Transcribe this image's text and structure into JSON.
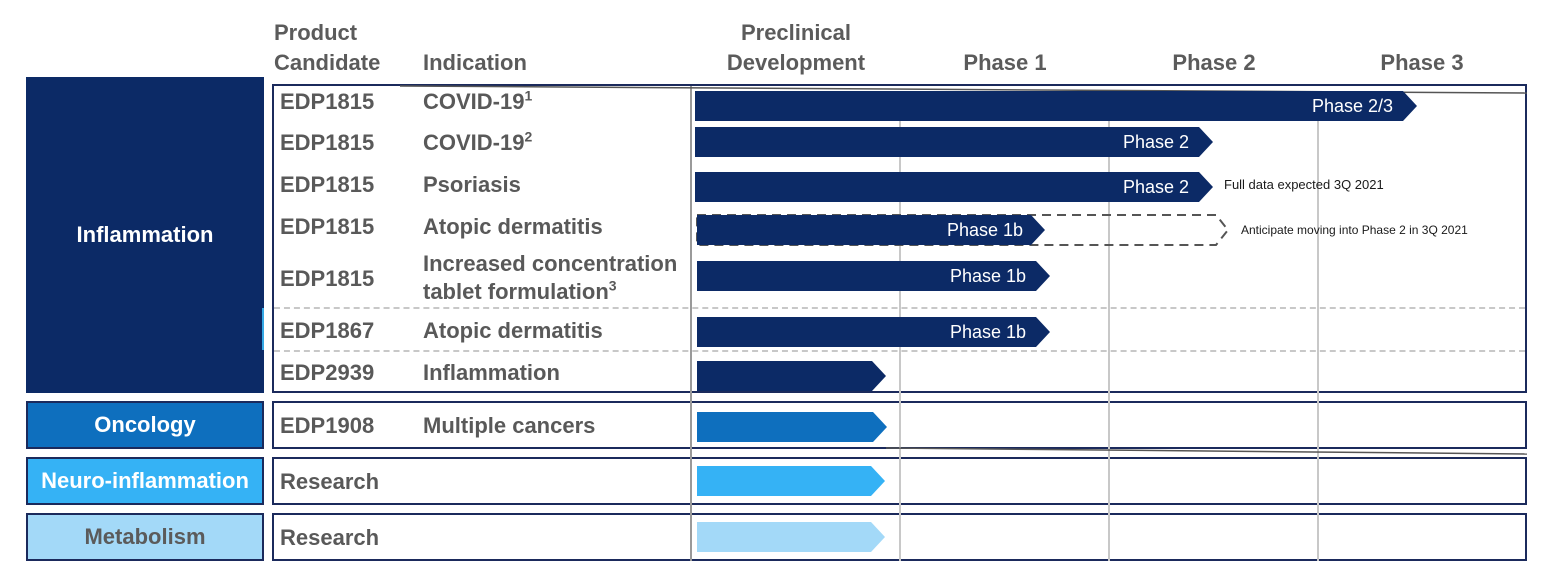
{
  "headers": {
    "product_candidate": [
      "Product",
      "Candidate"
    ],
    "indication": "Indication",
    "preclinical": [
      "Preclinical",
      "Development"
    ],
    "phase1": "Phase 1",
    "phase2": "Phase 2",
    "phase3": "Phase 3"
  },
  "categories": {
    "inflammation": "Inflammation",
    "oncology": "Oncology",
    "neuro": "Neuro-inflammation",
    "metabolism": "Metabolism"
  },
  "colors": {
    "inflammation": "#0c2a66",
    "oncology": "#0e6fbe",
    "neuro": "#35b2f5",
    "metabolism": "#a3d9f8",
    "metabolism_text": "#5b5b5b",
    "bar_dark": "#0c2a66"
  },
  "rows": [
    {
      "candidate": "EDP1815",
      "indication": "COVID-19",
      "sup": "1",
      "bar_label": "Phase 2/3"
    },
    {
      "candidate": "EDP1815",
      "indication": "COVID-19",
      "sup": "2",
      "bar_label": "Phase 2"
    },
    {
      "candidate": "EDP1815",
      "indication": "Psoriasis",
      "sup": "",
      "bar_label": "Phase 2"
    },
    {
      "candidate": "EDP1815",
      "indication": "Atopic dermatitis",
      "sup": "",
      "bar_label": "Phase 1b"
    },
    {
      "candidate": "EDP1815",
      "indication_line1": "Increased concentration",
      "indication_line2": "tablet formulation",
      "sup": "3",
      "bar_label": "Phase 1b"
    },
    {
      "candidate": "EDP1867",
      "indication": "Atopic dermatitis",
      "sup": "",
      "bar_label": "Phase 1b"
    },
    {
      "candidate": "EDP2939",
      "indication": "Inflammation",
      "sup": "",
      "bar_label": ""
    },
    {
      "candidate": "EDP1908",
      "indication": "Multiple cancers",
      "sup": "",
      "bar_label": ""
    },
    {
      "candidate": "Research",
      "indication": "",
      "sup": "",
      "bar_label": ""
    },
    {
      "candidate": "Research",
      "indication": "",
      "sup": "",
      "bar_label": ""
    }
  ],
  "notes": {
    "psoriasis": "Full data expected 3Q 2021",
    "atopic": "Anticipate moving into Phase 2 in 3Q 2021"
  }
}
